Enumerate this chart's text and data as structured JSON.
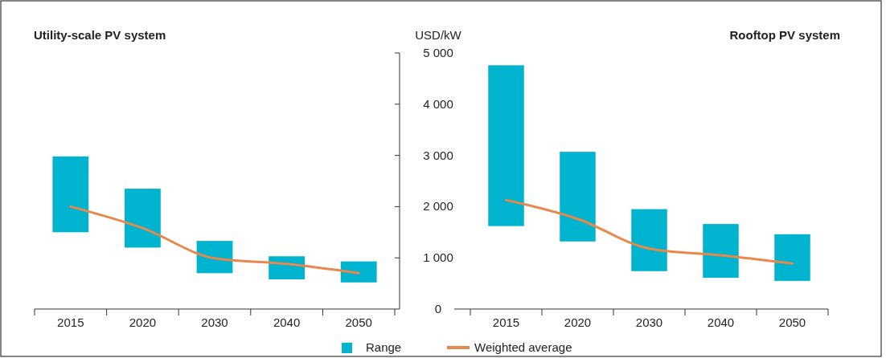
{
  "chart_data": [
    {
      "type": "bar",
      "title": "Utility-scale PV system",
      "categories": [
        "2015",
        "2020",
        "2030",
        "2040",
        "2050"
      ],
      "ylim": [
        0,
        5000
      ],
      "tick_labels": "x",
      "legend": false,
      "series": [
        {
          "color": "#00b3cf",
          "base": [
            1500,
            1200,
            700,
            580,
            520
          ],
          "values": [
            1480,
            1150,
            630,
            450,
            410
          ]
        },
        {
          "type": "line",
          "color": "#e8884a",
          "values": [
            2000,
            1580,
            990,
            880,
            700
          ]
        }
      ]
    },
    {
      "type": "bar",
      "title": "Rooftop PV system",
      "ylabel": "USD/kW",
      "categories": [
        "2015",
        "2020",
        "2030",
        "2040",
        "2050"
      ],
      "ylim": [
        0,
        5000
      ],
      "yticks": [
        0,
        {
          "value": 1000,
          "label": "1 000"
        },
        {
          "value": 2000,
          "label": "2 000"
        },
        {
          "value": 3000,
          "label": "3 000"
        },
        {
          "value": 4000,
          "label": "4 000"
        },
        {
          "value": 5000,
          "label": "5 000"
        }
      ],
      "legend": "bottom",
      "series": [
        {
          "name": "Range",
          "color": "#00b3cf",
          "base": [
            1620,
            1320,
            740,
            610,
            550
          ],
          "values": [
            3140,
            1750,
            1210,
            1050,
            910
          ]
        },
        {
          "name": "Weighted average",
          "type": "line",
          "color": "#e8884a",
          "values": [
            2130,
            1760,
            1180,
            1050,
            890
          ]
        }
      ]
    }
  ]
}
